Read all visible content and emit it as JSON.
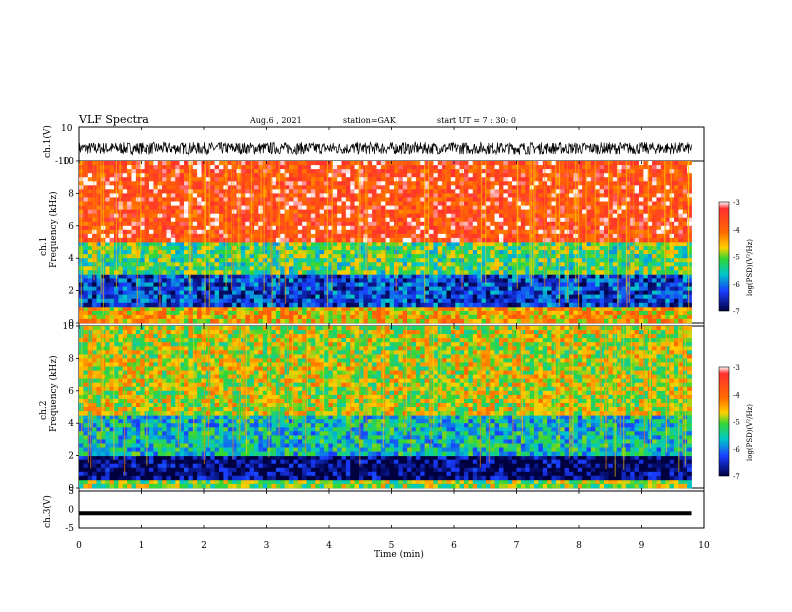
{
  "header": {
    "title": "VLF Spectra",
    "date": "Aug.6 , 2021",
    "station": "station=GAK",
    "start": "start UT = 7 : 30: 0"
  },
  "chart_data": [
    {
      "type": "line",
      "panel": "ch1-waveform",
      "xlabel": "",
      "ylabel": "ch.1(V)",
      "xlim": [
        0,
        10
      ],
      "ylim": [
        -10,
        10
      ],
      "y_tick_labels": [
        "10",
        "-10"
      ],
      "series": [
        {
          "values_range": [
            -6,
            3
          ],
          "mean": -2.5
        }
      ]
    },
    {
      "type": "heatmap",
      "panel": "ch1-spectrogram",
      "ylabel": "ch.1\nFrequency (kHz)",
      "xlim": [
        0,
        10
      ],
      "ylim": [
        0,
        10
      ],
      "y_tick_labels": [
        "0",
        "2",
        "4",
        "6",
        "8",
        "10"
      ],
      "colorbar": {
        "label": "log(PSD)(V²/Hz)",
        "ticks": [
          "-3",
          "-4",
          "-5",
          "-6",
          "-7"
        ],
        "range": [
          -7,
          -3
        ]
      },
      "bands": [
        {
          "freq_khz": [
            0,
            1
          ],
          "log_psd": -4.5
        },
        {
          "freq_khz": [
            1,
            3
          ],
          "log_psd": -6.3
        },
        {
          "freq_khz": [
            3,
            5
          ],
          "log_psd": -5.2
        },
        {
          "freq_khz": [
            5,
            10
          ],
          "log_psd": -3.6
        }
      ]
    },
    {
      "type": "heatmap",
      "panel": "ch2-spectrogram",
      "ylabel": "ch.2\nFrequency (kHz)",
      "xlim": [
        0,
        10
      ],
      "ylim": [
        0,
        10
      ],
      "y_tick_labels": [
        "0",
        "2",
        "4",
        "6",
        "8",
        "10"
      ],
      "colorbar": {
        "label": "log(PSD)(V²/Hz)",
        "ticks": [
          "-3",
          "-4",
          "-5",
          "-6",
          "-7"
        ],
        "range": [
          -7,
          -3
        ]
      },
      "bands": [
        {
          "freq_khz": [
            0,
            0.5
          ],
          "log_psd": -5.0
        },
        {
          "freq_khz": [
            0.5,
            2
          ],
          "log_psd": -6.9
        },
        {
          "freq_khz": [
            2,
            4.5
          ],
          "log_psd": -5.6
        },
        {
          "freq_khz": [
            4.5,
            10
          ],
          "log_psd": -4.8
        }
      ]
    },
    {
      "type": "line",
      "panel": "ch3-waveform",
      "ylabel": "ch.3(V)",
      "xlabel": "Time (min)",
      "xlim": [
        0,
        10
      ],
      "ylim": [
        -5,
        5
      ],
      "y_tick_labels": [
        "5",
        "0",
        "-5"
      ],
      "x_tick_labels": [
        "0",
        "1",
        "2",
        "3",
        "4",
        "5",
        "6",
        "7",
        "8",
        "9",
        "10"
      ],
      "series": [
        {
          "values": [
            -1,
            -1
          ]
        }
      ]
    }
  ]
}
